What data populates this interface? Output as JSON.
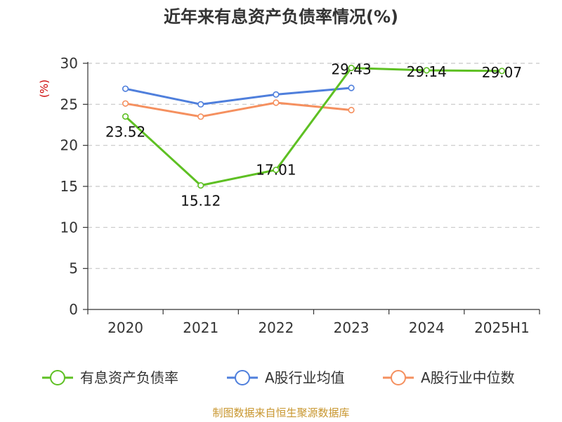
{
  "chart_data": {
    "type": "line",
    "title": "近年来有息资产负债率情况(%)",
    "ylabel": "(%)",
    "xlabel": "",
    "categories": [
      "2020",
      "2021",
      "2022",
      "2023",
      "2024",
      "2025H1"
    ],
    "ylim": [
      0,
      30
    ],
    "yticks": [
      0,
      5,
      10,
      15,
      20,
      25,
      30
    ],
    "grid": true,
    "legend_position": "bottom",
    "series": [
      {
        "name": "有息资产负债率",
        "color": "#5ec023",
        "values": [
          23.52,
          15.12,
          17.01,
          29.43,
          29.14,
          29.07
        ],
        "labels": [
          "23.52",
          "15.12",
          "17.01",
          "29.43",
          "29.14",
          "29.07"
        ]
      },
      {
        "name": "A股行业均值",
        "color": "#4f7fdc",
        "values": [
          26.9,
          25.0,
          26.2,
          27.0,
          null,
          null
        ]
      },
      {
        "name": "A股行业中位数",
        "color": "#f5905f",
        "values": [
          25.1,
          23.5,
          25.2,
          24.3,
          null,
          null
        ]
      }
    ]
  },
  "source": "制图数据来自恒生聚源数据库"
}
